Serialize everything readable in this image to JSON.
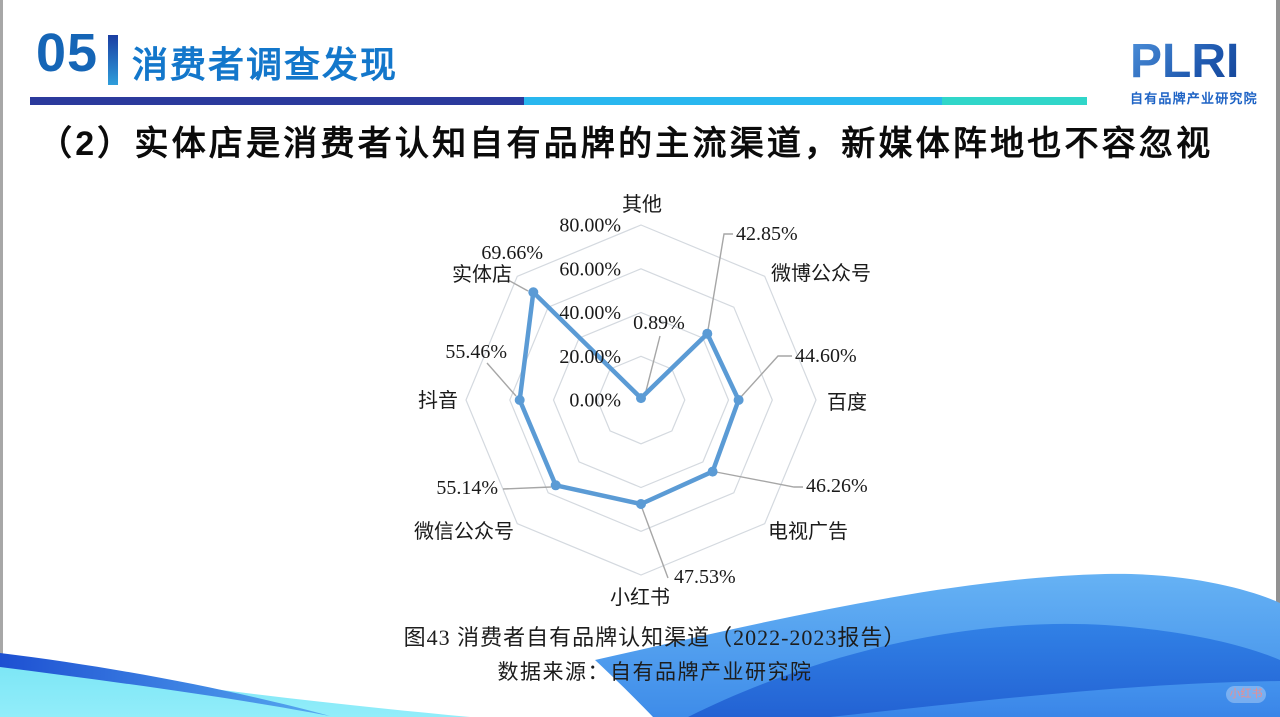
{
  "header": {
    "section_number": "05",
    "title": "消费者调查发现"
  },
  "logo": {
    "brand": "PLRI",
    "subtitle": "自有品牌产业研究院"
  },
  "heading": "（2）实体店是消费者认知自有品牌的主流渠道，新媒体阵地也不容忽视",
  "chart_data": {
    "type": "radar",
    "categories": [
      "其他",
      "微博公众号",
      "百度",
      "电视广告",
      "小红书",
      "微信公众号",
      "抖音",
      "实体店"
    ],
    "values": [
      0.89,
      42.85,
      44.6,
      46.26,
      47.53,
      55.14,
      55.46,
      69.66
    ],
    "value_labels": [
      "0.89%",
      "42.85%",
      "44.60%",
      "46.26%",
      "47.53%",
      "55.14%",
      "55.46%",
      "69.66%"
    ],
    "axis": {
      "min": 0,
      "max": 80,
      "step": 20,
      "tick_labels": [
        "0.00%",
        "20.00%",
        "40.00%",
        "60.00%",
        "80.00%"
      ]
    },
    "grid": "on",
    "legend": "none",
    "series_color": "#5B9BD5",
    "grid_color": "#D4D9DF",
    "leader_color": "#A6A6A6",
    "title": "图43 消费者自有品牌认知渠道（2022-2023报告）"
  },
  "caption": {
    "line1": "图43 消费者自有品牌认知渠道（2022-2023报告）",
    "line2": "数据来源：自有品牌产业研究院"
  },
  "watermark": "小红书",
  "colors": {
    "accent_blue": "#1377CB",
    "underline_navy": "#2B3A9C",
    "underline_sky": "#29B7EF",
    "underline_teal": "#30D6C9",
    "series": "#5B9BD5"
  }
}
